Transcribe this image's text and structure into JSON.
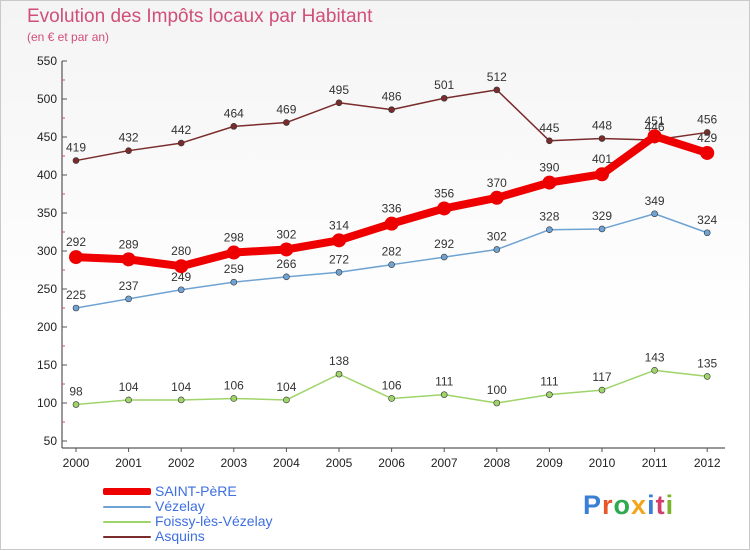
{
  "title": "Evolution des Impôts locaux par Habitant",
  "subtitle": "(en € et par an)",
  "logo": {
    "text": "Proxiti",
    "colors": [
      "#3a7fd6",
      "#e8562a",
      "#2fa84f",
      "#f2a71b",
      "#3a7fd6",
      "#d13f6a",
      "#7bb52b"
    ]
  },
  "chart_data": {
    "type": "line",
    "title": "Evolution des Impôts locaux par Habitant",
    "subtitle": "(en € et par an)",
    "x": [
      "2000",
      "2001",
      "2002",
      "2003",
      "2004",
      "2005",
      "2006",
      "2007",
      "2008",
      "2009",
      "2010",
      "2011",
      "2012"
    ],
    "ylim": [
      50,
      550
    ],
    "yticks": [
      50,
      100,
      150,
      200,
      250,
      300,
      350,
      400,
      450,
      500,
      550
    ],
    "grid": false,
    "legend_position": "bottom-left",
    "series": [
      {
        "name": "SAINT-PèRE",
        "color": "#ee0000",
        "width": 8,
        "marker": 7,
        "values": [
          292,
          289,
          280,
          298,
          302,
          314,
          336,
          356,
          370,
          390,
          401,
          451,
          429
        ]
      },
      {
        "name": "Vézelay",
        "color": "#6fa3d3",
        "width": 1.5,
        "marker": 3,
        "values": [
          225,
          237,
          249,
          259,
          266,
          272,
          282,
          292,
          302,
          328,
          329,
          349,
          324
        ]
      },
      {
        "name": "Foissy-lès-Vézelay",
        "color": "#9fd46a",
        "width": 1.5,
        "marker": 3,
        "values": [
          98,
          104,
          104,
          106,
          104,
          138,
          106,
          111,
          100,
          111,
          117,
          143,
          135
        ]
      },
      {
        "name": "Asquins",
        "color": "#7a2b2b",
        "width": 1.5,
        "marker": 3,
        "values": [
          419,
          432,
          442,
          464,
          469,
          495,
          486,
          501,
          512,
          445,
          448,
          446,
          456
        ]
      }
    ]
  }
}
